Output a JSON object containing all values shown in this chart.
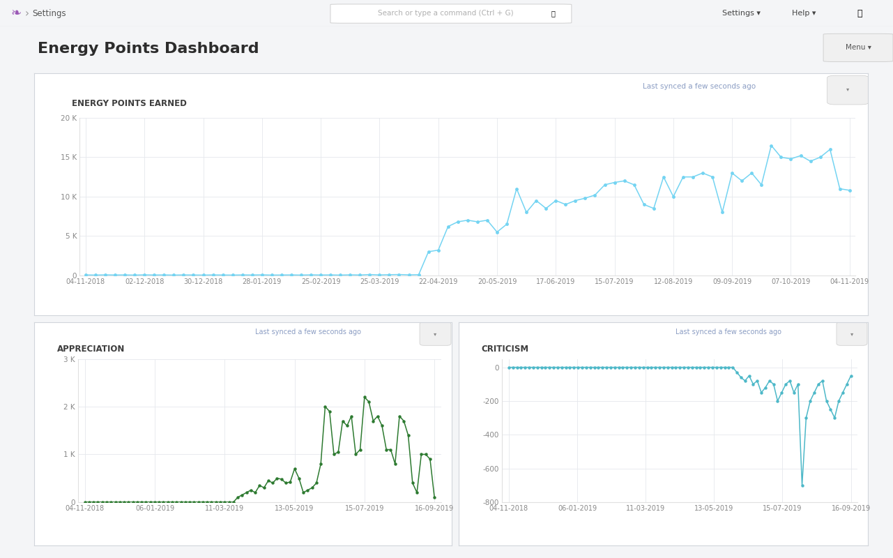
{
  "page_bg": "#f4f5f7",
  "card_bg": "#ffffff",
  "card_border": "#d1d5db",
  "navbar_bg": "#f8f8f8",
  "navbar_border": "#e5e7eb",
  "title_text": "Energy Points Dashboard",
  "title_color": "#2c2c2c",
  "title_fontsize": 16,
  "sync_text": "Last synced a few seconds ago",
  "sync_color": "#8b9dc3",
  "chart1_title": "ENERGY POINTS EARNED",
  "chart1_title_color": "#3d3d3d",
  "chart1_line_color": "#74d4f2",
  "chart1_marker_color": "#74d4f2",
  "chart1_ylim": [
    0,
    20000
  ],
  "chart1_yticks": [
    0,
    5000,
    10000,
    15000,
    20000
  ],
  "chart1_ytick_labels": [
    "0",
    "5 K",
    "10 K",
    "15 K",
    "20 K"
  ],
  "chart1_x_labels": [
    "04-11-2018",
    "02-12-2018",
    "30-12-2018",
    "28-01-2019",
    "25-02-2019",
    "25-03-2019",
    "22-04-2019",
    "20-05-2019",
    "17-06-2019",
    "15-07-2019",
    "12-08-2019",
    "09-09-2019",
    "07-10-2019",
    "04-11-2019"
  ],
  "chart1_y": [
    50,
    30,
    60,
    40,
    50,
    30,
    60,
    40,
    50,
    30,
    50,
    40,
    30,
    50,
    40,
    30,
    50,
    40,
    60,
    30,
    40,
    50,
    30,
    60,
    40,
    50,
    30,
    60,
    40,
    100,
    50,
    80,
    100,
    60,
    80,
    3000,
    3200,
    6200,
    6800,
    7000,
    6800,
    7000,
    5500,
    6500,
    11000,
    8000,
    9500,
    8500,
    9500,
    9000,
    9500,
    9800,
    10200,
    11500,
    11800,
    12000,
    11500,
    9000,
    8500,
    12500,
    10000,
    12500,
    12500,
    13000,
    12500,
    8000,
    13000,
    12000,
    13000,
    11500,
    16500,
    15000,
    14800,
    15200,
    14500,
    15000,
    16000,
    11000,
    10800
  ],
  "chart2_title": "APPRECIATION",
  "chart2_title_color": "#3d3d3d",
  "chart2_line_color": "#2d7a30",
  "chart2_marker_color": "#2d7a30",
  "chart2_ylim": [
    0,
    3000
  ],
  "chart2_yticks": [
    0,
    1000,
    2000,
    3000
  ],
  "chart2_ytick_labels": [
    "0",
    "1 K",
    "2 K",
    "3 K"
  ],
  "chart2_x_labels": [
    "04-11-2018",
    "06-01-2019",
    "11-03-2019",
    "13-05-2019",
    "15-07-2019",
    "16-09-2019"
  ],
  "chart2_y": [
    0,
    0,
    0,
    0,
    0,
    0,
    0,
    0,
    0,
    0,
    0,
    0,
    0,
    0,
    0,
    0,
    0,
    0,
    0,
    0,
    0,
    0,
    0,
    0,
    0,
    0,
    0,
    0,
    0,
    0,
    0,
    0,
    0,
    0,
    0,
    100,
    150,
    200,
    250,
    200,
    350,
    300,
    450,
    400,
    500,
    480,
    400,
    420,
    700,
    500,
    200,
    250,
    300,
    400,
    800,
    2000,
    1900,
    1000,
    1050,
    1700,
    1600,
    1800,
    1000,
    1100,
    2200,
    2100,
    1700,
    1800,
    1600,
    1100,
    1100,
    800,
    1800,
    1700,
    1400,
    400,
    200,
    1000,
    1000,
    900,
    100
  ],
  "chart3_title": "CRITICISM",
  "chart3_title_color": "#3d3d3d",
  "chart3_line_color": "#4db8c8",
  "chart3_marker_color": "#4db8c8",
  "chart3_ylim": [
    -800,
    50
  ],
  "chart3_yticks": [
    0,
    -200,
    -400,
    -600,
    -800
  ],
  "chart3_ytick_labels": [
    "0",
    "-200",
    "-400",
    "-600",
    "-800"
  ],
  "chart3_x_labels": [
    "04-11-2018",
    "06-01-2019",
    "11-03-2019",
    "13-05-2019",
    "15-07-2019",
    "16-09-2019"
  ],
  "chart3_y": [
    0,
    0,
    0,
    0,
    0,
    0,
    0,
    0,
    0,
    0,
    0,
    0,
    0,
    0,
    0,
    0,
    0,
    0,
    0,
    0,
    0,
    0,
    0,
    0,
    0,
    0,
    0,
    0,
    0,
    0,
    0,
    0,
    0,
    0,
    0,
    0,
    0,
    0,
    0,
    0,
    0,
    0,
    0,
    0,
    0,
    0,
    0,
    0,
    0,
    0,
    0,
    0,
    0,
    0,
    0,
    0,
    -30,
    -60,
    -80,
    -50,
    -100,
    -80,
    -150,
    -120,
    -80,
    -100,
    -200,
    -150,
    -100,
    -80,
    -150,
    -100,
    -700,
    -300,
    -200,
    -150,
    -100,
    -80,
    -200,
    -250,
    -300,
    -200,
    -150,
    -100,
    -50
  ]
}
